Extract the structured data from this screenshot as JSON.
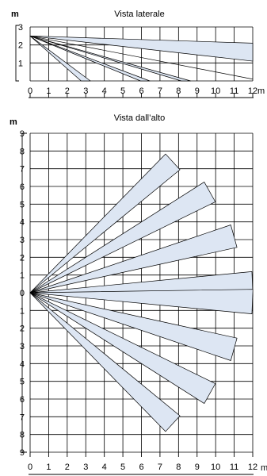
{
  "side_view": {
    "title": "Vista laterale",
    "y_unit": "m",
    "x_unit": "m",
    "x_ticks": [
      "0",
      "1",
      "2",
      "3",
      "4",
      "5",
      "6",
      "7",
      "8",
      "9",
      "10",
      "11",
      "12"
    ],
    "y_ticks": [
      "3",
      "2",
      "1"
    ]
  },
  "top_view": {
    "title": "Vista dall’alto",
    "y_unit": "m",
    "x_unit": "m",
    "x_ticks": [
      "0",
      "1",
      "2",
      "3",
      "4",
      "5",
      "6",
      "7",
      "8",
      "9",
      "10",
      "11",
      "12"
    ],
    "y_ticks": [
      "9",
      "8",
      "7",
      "6",
      "5",
      "4",
      "3",
      "2",
      "1",
      "0",
      "1",
      "2",
      "3",
      "4",
      "5",
      "6",
      "7",
      "8",
      "9"
    ]
  },
  "chart_data": [
    {
      "type": "diagram",
      "title": "Vista laterale",
      "xlim": [
        0,
        12
      ],
      "ylim": [
        0,
        3
      ],
      "grid": true,
      "source_height_m": 2.5,
      "beam_floor_reach_m": [
        3,
        6.2,
        8.4,
        12
      ],
      "long_range_zones": [
        {
          "far_x": 12,
          "y_top": 2.1,
          "y_bottom": 1.1
        }
      ]
    },
    {
      "type": "diagram",
      "title": "Vista dall’alto",
      "xlim": [
        0,
        12
      ],
      "ylim": [
        -9,
        9
      ],
      "grid": true,
      "origin": [
        0,
        0
      ],
      "zones": [
        {
          "tip": [
            7.7,
            7.4
          ]
        },
        {
          "tip": [
            9.7,
            5.7
          ]
        },
        {
          "tip": [
            11.0,
            3.2
          ]
        },
        {
          "tip": [
            12.0,
            0.5
          ]
        },
        {
          "tip": [
            12.0,
            -0.5
          ]
        },
        {
          "tip": [
            11.0,
            -3.2
          ]
        },
        {
          "tip": [
            9.7,
            -5.7
          ]
        },
        {
          "tip": [
            7.7,
            -7.4
          ]
        }
      ]
    }
  ]
}
